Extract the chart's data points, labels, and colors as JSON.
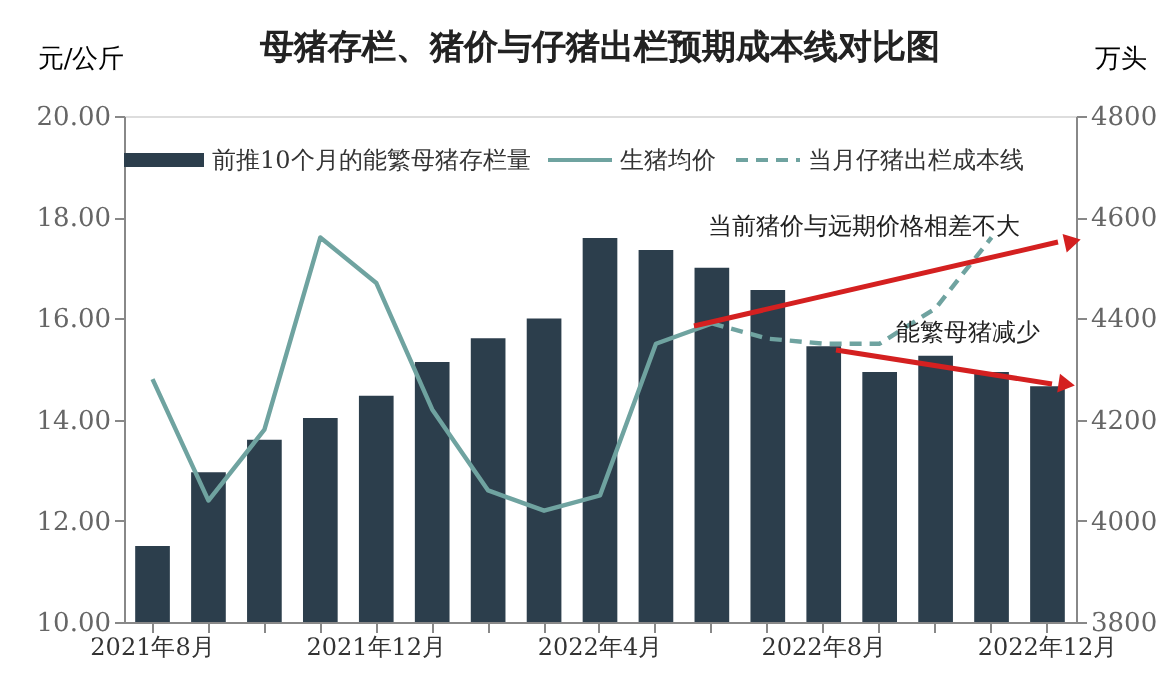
{
  "chart_data": {
    "type": "bar",
    "title": "母猪存栏、猪价与仔猪出栏预期成本线对比图",
    "ylabel": "元/公斤",
    "y2label": "万头",
    "categories": [
      "2021年8月",
      null,
      null,
      null,
      "2021年12月",
      null,
      null,
      null,
      "2022年4月",
      null,
      null,
      null,
      "2022年8月",
      null,
      null,
      null,
      "2022年12月"
    ],
    "series": [
      {
        "name": "前推10个月的能繁母猪存栏量",
        "axis": "y2",
        "color": "#2c3e4c",
        "values": [
          3950,
          4096,
          4160,
          4203,
          4247,
          4314,
          4361,
          4400,
          4559,
          4535,
          4500,
          4456,
          4345,
          4294,
          4326,
          4294,
          4266
        ]
      },
      {
        "name": "生猪均价",
        "type": "line",
        "line_style": "solid",
        "color": "#6fa3a0",
        "values": [
          14.8,
          12.4,
          13.8,
          17.6,
          16.7,
          14.2,
          12.6,
          12.2,
          12.5,
          15.5,
          15.9,
          null,
          null,
          null,
          null,
          null,
          null
        ]
      },
      {
        "name": "当月仔猪出栏成本线",
        "type": "line",
        "line_style": "dashed",
        "color": "#6fa3a0",
        "values": [
          null,
          null,
          null,
          null,
          null,
          null,
          null,
          null,
          null,
          null,
          15.9,
          15.6,
          15.5,
          15.5,
          16.2,
          17.6,
          null
        ]
      }
    ],
    "ylim": [
      10,
      20
    ],
    "yticks": [
      {
        "value": 10,
        "label": "10.00"
      },
      {
        "value": 12,
        "label": "12.00"
      },
      {
        "value": 14,
        "label": "14.00"
      },
      {
        "value": 16,
        "label": "16.00"
      },
      {
        "value": 18,
        "label": "18.00"
      },
      {
        "value": 20,
        "label": "20.00"
      }
    ],
    "y2lim": [
      3800,
      4800
    ],
    "y2ticks": [
      3800,
      4000,
      4200,
      4400,
      4600,
      4800
    ],
    "annotations": [
      "当前猪价与远期价格相差不大",
      "能繁母猪减少"
    ],
    "legend": "top",
    "grid": false
  }
}
